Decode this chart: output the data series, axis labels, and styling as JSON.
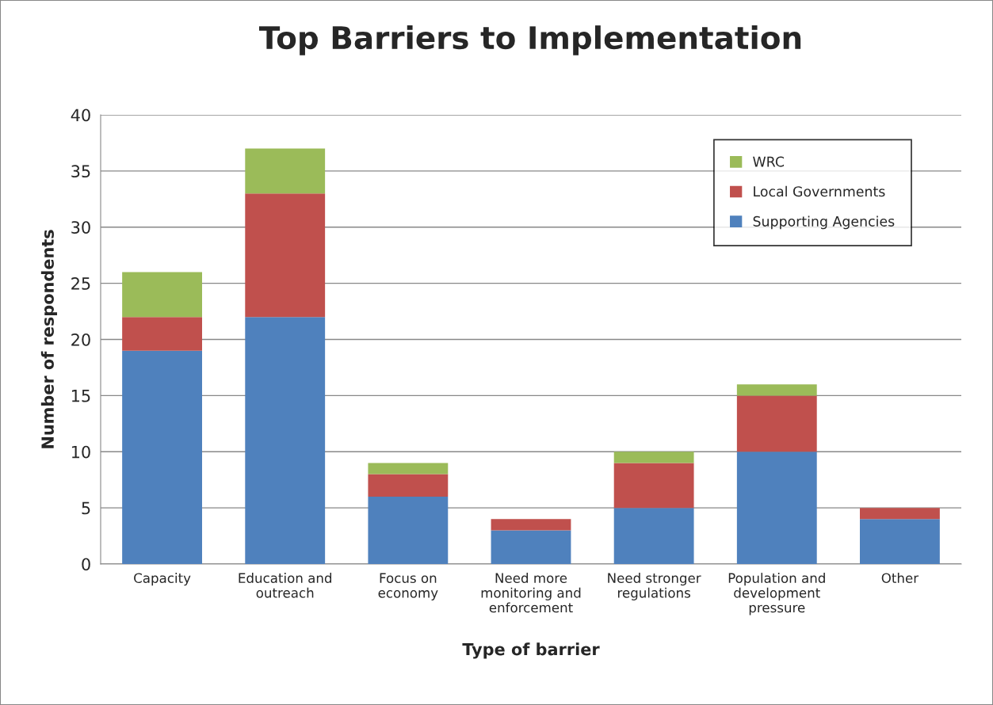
{
  "chart_data": {
    "type": "bar",
    "title": "Top Barriers to Implementation",
    "xlabel": "Type of barrier",
    "ylabel": "Number of respondents",
    "categories": [
      "Capacity",
      "Education and outreach",
      "Focus on economy",
      "Need more monitoring and enforcement",
      "Need stronger regulations",
      "Population and development pressure",
      "Other"
    ],
    "series": [
      {
        "name": "Supporting Agencies",
        "color": "#4f81bd",
        "values": [
          19,
          22,
          6,
          3,
          5,
          10,
          4
        ]
      },
      {
        "name": "Local Governments",
        "color": "#c0504d",
        "values": [
          3,
          11,
          2,
          1,
          4,
          5,
          1
        ]
      },
      {
        "name": "WRC",
        "color": "#9bbb59",
        "values": [
          4,
          4,
          1,
          0,
          1,
          1,
          0
        ]
      }
    ],
    "stacked": true,
    "ylim": [
      0,
      40
    ],
    "yticks": [
      0,
      5,
      10,
      15,
      20,
      25,
      30,
      35,
      40
    ],
    "grid": "y",
    "legend": "top right"
  }
}
